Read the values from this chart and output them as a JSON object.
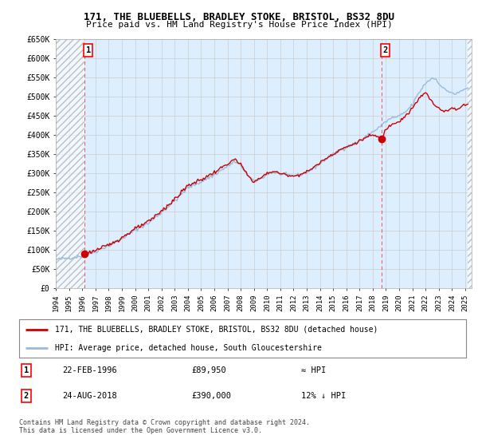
{
  "title1": "171, THE BLUEBELLS, BRADLEY STOKE, BRISTOL, BS32 8DU",
  "title2": "Price paid vs. HM Land Registry's House Price Index (HPI)",
  "ylim": [
    0,
    650000
  ],
  "yticks": [
    0,
    50000,
    100000,
    150000,
    200000,
    250000,
    300000,
    350000,
    400000,
    450000,
    500000,
    550000,
    600000,
    650000
  ],
  "ytick_labels": [
    "£0",
    "£50K",
    "£100K",
    "£150K",
    "£200K",
    "£250K",
    "£300K",
    "£350K",
    "£400K",
    "£450K",
    "£500K",
    "£550K",
    "£600K",
    "£650K"
  ],
  "xlim_start": 1994.0,
  "xlim_end": 2025.5,
  "xticks": [
    1994,
    1995,
    1996,
    1997,
    1998,
    1999,
    2000,
    2001,
    2002,
    2003,
    2004,
    2005,
    2006,
    2007,
    2008,
    2009,
    2010,
    2011,
    2012,
    2013,
    2014,
    2015,
    2016,
    2017,
    2018,
    2019,
    2020,
    2021,
    2022,
    2023,
    2024,
    2025
  ],
  "sale1_x": 1996.14,
  "sale1_y": 89950,
  "sale1_label": "1",
  "sale1_date": "22-FEB-1996",
  "sale1_price": "£89,950",
  "sale1_vs_hpi": "≈ HPI",
  "sale2_x": 2018.65,
  "sale2_y": 390000,
  "sale2_label": "2",
  "sale2_date": "24-AUG-2018",
  "sale2_price": "£390,000",
  "sale2_vs_hpi": "12% ↓ HPI",
  "property_color": "#cc0000",
  "hpi_color": "#99bbdd",
  "grid_color": "#cccccc",
  "bg_color": "#ddeeff",
  "legend_label1": "171, THE BLUEBELLS, BRADLEY STOKE, BRISTOL, BS32 8DU (detached house)",
  "legend_label2": "HPI: Average price, detached house, South Gloucestershire",
  "footer": "Contains HM Land Registry data © Crown copyright and database right 2024.\nThis data is licensed under the Open Government Licence v3.0."
}
